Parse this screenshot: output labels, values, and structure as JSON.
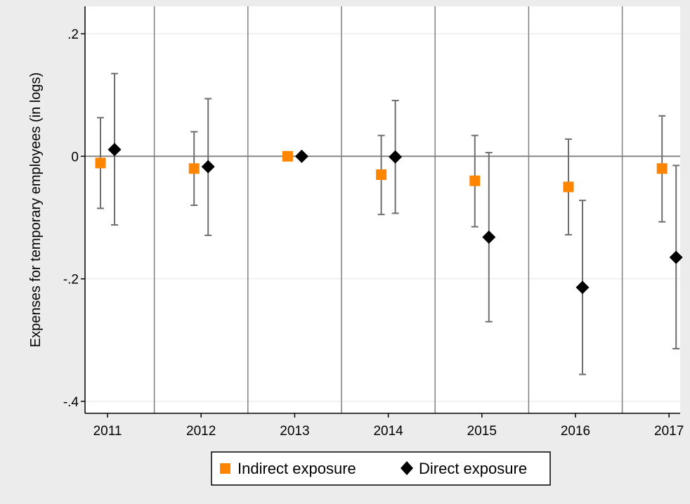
{
  "chart_data": {
    "type": "scatter",
    "ylabel": "Expenses for temporary employees (in logs)",
    "xlabel": "",
    "categories": [
      "2011",
      "2012",
      "2013",
      "2014",
      "2015",
      "2016",
      "2017"
    ],
    "ylim": [
      -0.4,
      0.2
    ],
    "yticks": [
      0.2,
      0,
      -0.2,
      -0.4
    ],
    "ytick_labels": [
      ".2",
      "0",
      "-.2",
      "-.4"
    ],
    "grid": true,
    "reference_line_y": 0,
    "legend_position": "bottom",
    "series": [
      {
        "name": "Indirect exposure",
        "marker": "square",
        "color": "#ff8400",
        "values": [
          -0.011,
          -0.02,
          0.0,
          -0.03,
          -0.04,
          -0.05,
          -0.02
        ],
        "ci_low": [
          -0.085,
          -0.08,
          0.0,
          -0.095,
          -0.115,
          -0.128,
          -0.107
        ],
        "ci_high": [
          0.063,
          0.04,
          0.0,
          0.034,
          0.034,
          0.028,
          0.066
        ]
      },
      {
        "name": "Direct exposure",
        "marker": "diamond",
        "color": "#000000",
        "values": [
          0.011,
          -0.017,
          0.0,
          -0.001,
          -0.132,
          -0.214,
          -0.165
        ],
        "ci_low": [
          -0.112,
          -0.129,
          0.0,
          -0.093,
          -0.27,
          -0.356,
          -0.314
        ],
        "ci_high": [
          0.135,
          0.094,
          0.0,
          0.091,
          0.006,
          -0.072,
          -0.015
        ]
      }
    ]
  },
  "colors": {
    "background": "#ececec",
    "plot_background": "#ffffff",
    "ci_whisker": "#6e6e6e",
    "grid": "#eaeaea"
  }
}
